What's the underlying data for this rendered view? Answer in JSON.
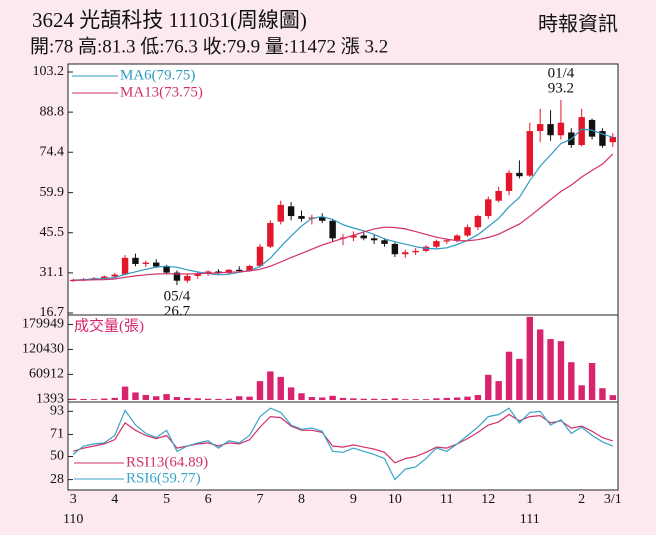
{
  "header": {
    "title": "3624  光頡科技 111031(周線圖)",
    "source": "時報資訊",
    "stats": "開:78 高:81.3 低:76.3 收:79.9 量:11472 漲 3.2"
  },
  "chart_data": [
    {
      "type": "candlestick",
      "categories": [
        "3",
        null,
        null,
        null,
        "4",
        null,
        null,
        null,
        null,
        "5",
        null,
        null,
        null,
        "6",
        null,
        null,
        null,
        null,
        "7",
        null,
        null,
        null,
        "8",
        null,
        null,
        null,
        null,
        "9",
        null,
        null,
        null,
        "10",
        null,
        null,
        null,
        null,
        "11",
        null,
        null,
        null,
        "12",
        null,
        null,
        null,
        "1",
        null,
        null,
        null,
        null,
        "2",
        null,
        null,
        "3/1"
      ],
      "year_labels": [
        "110",
        null,
        null,
        null,
        null,
        null,
        null,
        null,
        null,
        null,
        null,
        null,
        null,
        null,
        null,
        null,
        null,
        null,
        null,
        null,
        null,
        null,
        null,
        null,
        null,
        null,
        null,
        null,
        null,
        null,
        null,
        null,
        null,
        null,
        null,
        null,
        null,
        null,
        null,
        null,
        null,
        null,
        null,
        null,
        "111",
        null,
        null,
        null,
        null,
        null,
        null,
        null,
        null
      ],
      "open": [
        28.3,
        28.6,
        28.9,
        29.2,
        29.8,
        30.5,
        36.5,
        34.3,
        34.8,
        33.4,
        31.2,
        28.3,
        30.0,
        30.8,
        31.6,
        31.0,
        32.2,
        31.9,
        33.6,
        40.5,
        49.5,
        55.0,
        51.5,
        50.5,
        51.0,
        49.8,
        43.5,
        43.8,
        44.5,
        43.5,
        42.8,
        41.5,
        37.8,
        38.5,
        39.0,
        40.5,
        42.5,
        42.8,
        44.5,
        47.5,
        51.5,
        57.0,
        60.5,
        67.0,
        66.0,
        82.0,
        84.5,
        80.5,
        81.5,
        77.0,
        86.0,
        82.0,
        78
      ],
      "high": [
        29.0,
        29.3,
        29.6,
        30.2,
        31.0,
        37.5,
        38.0,
        35.5,
        36.0,
        34.0,
        32.0,
        30.5,
        31.2,
        32.0,
        32.4,
        32.5,
        33.5,
        34.0,
        41.5,
        50.0,
        57.0,
        56.5,
        53.5,
        52.0,
        52.5,
        50.5,
        45.0,
        46.0,
        45.5,
        44.8,
        43.5,
        42.0,
        39.5,
        40.0,
        41.0,
        43.0,
        43.5,
        45.0,
        48.5,
        52.0,
        58.5,
        62.0,
        68.0,
        71.5,
        85.0,
        90.0,
        89.5,
        93.2,
        83.0,
        90.0,
        86.5,
        83.0,
        81.3
      ],
      "low": [
        27.8,
        28.1,
        28.4,
        28.8,
        29.3,
        30.2,
        33.5,
        33.2,
        32.8,
        30.5,
        26.7,
        27.5,
        29.0,
        30.0,
        30.6,
        30.5,
        31.5,
        31.5,
        33.0,
        40.0,
        48.5,
        50.0,
        49.5,
        48.5,
        49.0,
        42.5,
        41.0,
        42.5,
        42.8,
        41.5,
        40.5,
        36.8,
        36.5,
        37.5,
        38.5,
        40.0,
        41.5,
        42.0,
        44.0,
        46.5,
        50.5,
        56.5,
        59.0,
        65.0,
        65.5,
        78.0,
        78.5,
        79.0,
        76.0,
        76.5,
        79.0,
        76.0,
        76.3
      ],
      "close": [
        28.6,
        28.9,
        29.2,
        29.8,
        30.5,
        36.5,
        34.3,
        34.8,
        33.4,
        31.2,
        28.3,
        30.0,
        30.8,
        31.6,
        31.0,
        32.2,
        31.9,
        33.6,
        40.5,
        49.0,
        55.5,
        51.5,
        50.5,
        51.0,
        49.8,
        43.5,
        43.8,
        44.5,
        43.5,
        42.8,
        41.5,
        37.8,
        38.5,
        39.0,
        40.5,
        42.5,
        42.8,
        44.5,
        47.5,
        51.5,
        57.5,
        60.5,
        67.0,
        65.8,
        82.0,
        84.5,
        80.5,
        85.0,
        77.0,
        87.0,
        80.0,
        76.7,
        79.9
      ],
      "up_color": "#e3162b",
      "down_color": "#111111",
      "series": [
        {
          "name": "MA6(79.75)",
          "color": "#2f9ac0",
          "values": [
            28.5,
            28.7,
            28.9,
            29.1,
            29.4,
            30.6,
            31.5,
            32.4,
            33.2,
            33.5,
            33.1,
            32.2,
            31.4,
            30.9,
            30.4,
            30.6,
            31.3,
            31.9,
            33.4,
            36.4,
            40.5,
            44.3,
            47.9,
            50.7,
            51.3,
            50.3,
            48.4,
            47.2,
            46.2,
            44.9,
            43.3,
            42.3,
            41.4,
            40.5,
            39.9,
            39.7,
            40.1,
            41.3,
            42.8,
            44.8,
            47.7,
            50.7,
            54.8,
            58.2,
            64.2,
            69.4,
            73.4,
            77.5,
            79.1,
            82.7,
            82.3,
            80.9,
            79.75
          ]
        },
        {
          "name": "MA13(73.75)",
          "color": "#d2306a",
          "values": [
            28.4,
            28.5,
            28.6,
            28.7,
            28.9,
            29.5,
            30.0,
            30.4,
            30.7,
            30.8,
            30.7,
            30.7,
            30.8,
            30.9,
            31.1,
            31.3,
            31.5,
            31.8,
            32.4,
            33.5,
            35.0,
            36.6,
            38.1,
            39.6,
            41.1,
            42.3,
            43.5,
            44.6,
            45.8,
            46.9,
            47.5,
            47.4,
            46.9,
            45.9,
            44.9,
            43.9,
            43.2,
            42.7,
            42.6,
            43.0,
            43.8,
            45.0,
            46.8,
            48.6,
            51.4,
            54.4,
            57.4,
            60.3,
            62.6,
            65.5,
            67.9,
            70.1,
            73.75
          ]
        }
      ],
      "annotations": [
        {
          "label": "01/4",
          "value": 93.2
        },
        {
          "label": "05/4",
          "value": 26.7
        }
      ],
      "ylim": [
        16.7,
        103.2
      ],
      "yticks": [
        16.7,
        31.1,
        45.5,
        59.9,
        74.4,
        88.8,
        103.2
      ]
    },
    {
      "type": "bar",
      "title": "成交量(張)",
      "color": "#d8246e",
      "values": [
        3000,
        2500,
        2000,
        3500,
        5000,
        32000,
        18000,
        12000,
        9000,
        14000,
        7000,
        5000,
        4000,
        3000,
        2500,
        3000,
        9000,
        8000,
        45000,
        68000,
        55000,
        30000,
        16000,
        7000,
        6000,
        10000,
        5000,
        4000,
        3000,
        3000,
        2500,
        4000,
        2000,
        2000,
        2000,
        4000,
        5000,
        6000,
        8000,
        12000,
        60000,
        45000,
        115000,
        98000,
        198000,
        168000,
        145000,
        140000,
        90000,
        35000,
        88000,
        28000,
        11472
      ],
      "ylim": [
        0,
        200000
      ],
      "yticks": [
        1393,
        60912,
        120430,
        179949
      ]
    },
    {
      "type": "line",
      "series": [
        {
          "name": "RSI13(64.89)",
          "color": "#d2306a",
          "values": [
            55,
            58,
            60,
            62,
            66,
            82,
            75,
            70,
            67,
            70,
            58,
            60,
            62,
            63,
            60,
            63,
            62,
            66,
            78,
            88,
            87,
            79,
            75,
            75,
            73,
            60,
            59,
            61,
            59,
            57,
            54,
            44,
            48,
            50,
            54,
            59,
            58,
            62,
            67,
            73,
            80,
            83,
            90,
            84,
            88,
            89,
            82,
            84,
            77,
            79,
            74,
            68,
            64.89
          ]
        },
        {
          "name": "RSI6(59.77)",
          "color": "#3aa3c8",
          "values": [
            52,
            60,
            62,
            63,
            70,
            94,
            80,
            72,
            68,
            75,
            55,
            60,
            63,
            65,
            58,
            65,
            63,
            70,
            88,
            96,
            92,
            80,
            76,
            77,
            74,
            55,
            54,
            58,
            55,
            52,
            48,
            28,
            38,
            40,
            48,
            58,
            55,
            62,
            70,
            78,
            88,
            90,
            96,
            82,
            92,
            93,
            80,
            85,
            72,
            78,
            70,
            64,
            59.77
          ]
        }
      ],
      "ylim": [
        20,
        100
      ],
      "yticks": [
        28,
        50,
        71,
        93
      ]
    }
  ]
}
